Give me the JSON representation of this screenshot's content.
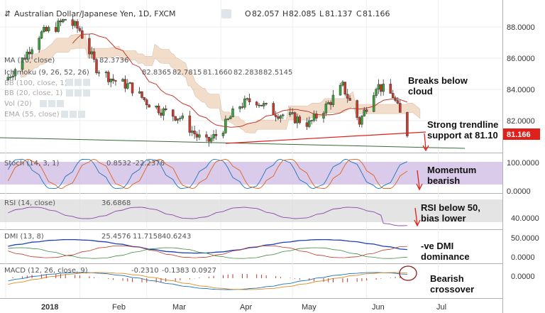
{
  "header": {
    "title": "Australian Dollar/Japanese Yen, 1D, FXCM",
    "open_label": "O",
    "open": "82.057",
    "high_label": "H",
    "high": "82.085",
    "low_label": "L",
    "low": "81.137",
    "close_label": "C",
    "close": "81.166"
  },
  "indicators": [
    {
      "name": "MA (20, close)",
      "values": [
        "82.3736"
      ],
      "colors": [
        "#a52a2a"
      ]
    },
    {
      "name": "Ichimoku (9, 26, 52, 26)",
      "values": [
        "82.8365",
        "82.7815",
        "81.1660",
        "82.2838",
        "82.5145"
      ],
      "colors": [
        "#1e73be",
        "#8b1a1a",
        "#3c8c3c",
        "#3c8c3c",
        "#c0392b"
      ]
    },
    {
      "name": "BB (100, close, 1)",
      "values": []
    },
    {
      "name": "BB (20, close, 1)",
      "values": []
    },
    {
      "name": "Vol (20)",
      "values": []
    },
    {
      "name": "EMA (55, close)",
      "values": []
    }
  ],
  "price_axis": {
    "ticks": [
      "88.0000",
      "86.0000",
      "84.0000",
      "82.0000"
    ],
    "current_price": "81.166",
    "current_color": "#e0201b"
  },
  "time_axis": {
    "labels": [
      "2018",
      "Feb",
      "Mar",
      "Apr",
      "May",
      "Jun",
      "Jul"
    ]
  },
  "annotations": {
    "cloud": "Breaks below\ncloud",
    "trendline": "Strong trendline\nsupport at 81.10",
    "momentum": "Momentum\nbearish",
    "rsi": "RSI below 50,\nbias lower",
    "dmi": "-ve DMI\ndominance",
    "macd": "Bearish\ncrossover"
  },
  "stoch": {
    "label": "Stoch (14, 3, 1)",
    "values": [
      "0.8532",
      "-22.2376"
    ],
    "colors": [
      "#1e73be",
      "#e0601b"
    ],
    "ticks": [
      "100.0000",
      "0.0000"
    ],
    "band_color": "#c9b5e0"
  },
  "rsi": {
    "label": "RSI (14, close)",
    "value": "36.6868",
    "color": "#8e44ad",
    "ticks": [
      "40.0000"
    ],
    "band_color": "#d8d8d8"
  },
  "dmi": {
    "label": "DMI (13, 8)",
    "values": [
      "25.4576",
      "11.7158",
      "40.6243"
    ],
    "colors": [
      "#1e3fbf",
      "#3c8c3c",
      "#c0392b"
    ],
    "ticks": [
      "50.0000",
      "0.0000"
    ]
  },
  "macd": {
    "label": "MACD (12, 26, close, 9)",
    "values": [
      "-0.2310",
      "-0.1383",
      "0.0927"
    ],
    "colors": [
      "#c0392b",
      "#1e73be",
      "#e08a1b"
    ],
    "ticks": [
      "0.0000"
    ]
  },
  "chart_data": {
    "type": "candlestick",
    "title": "Australian Dollar/Japanese Yen, 1D, FXCM",
    "x_range": [
      "2018-01-01",
      "2018-07-10"
    ],
    "y_range": [
      80.2,
      89.3
    ],
    "approx_close_path": [
      {
        "date": "2018-01-01",
        "close": 84.6
      },
      {
        "date": "2018-01-08",
        "close": 85.9
      },
      {
        "date": "2018-01-15",
        "close": 87.5
      },
      {
        "date": "2018-01-22",
        "close": 88.0
      },
      {
        "date": "2018-01-26",
        "close": 88.5
      },
      {
        "date": "2018-02-01",
        "close": 87.8
      },
      {
        "date": "2018-02-08",
        "close": 85.4
      },
      {
        "date": "2018-02-15",
        "close": 84.6
      },
      {
        "date": "2018-02-22",
        "close": 84.2
      },
      {
        "date": "2018-03-01",
        "close": 83.2
      },
      {
        "date": "2018-03-08",
        "close": 82.6
      },
      {
        "date": "2018-03-15",
        "close": 82.2
      },
      {
        "date": "2018-03-22",
        "close": 81.0
      },
      {
        "date": "2018-03-26",
        "close": 80.6
      },
      {
        "date": "2018-04-01",
        "close": 81.3
      },
      {
        "date": "2018-04-08",
        "close": 82.9
      },
      {
        "date": "2018-04-15",
        "close": 83.4
      },
      {
        "date": "2018-04-22",
        "close": 82.6
      },
      {
        "date": "2018-05-01",
        "close": 82.2
      },
      {
        "date": "2018-05-08",
        "close": 81.8
      },
      {
        "date": "2018-05-15",
        "close": 82.9
      },
      {
        "date": "2018-05-22",
        "close": 84.2
      },
      {
        "date": "2018-05-29",
        "close": 81.9
      },
      {
        "date": "2018-06-05",
        "close": 84.3
      },
      {
        "date": "2018-06-12",
        "close": 83.6
      },
      {
        "date": "2018-06-18",
        "close": 81.2
      }
    ],
    "trendline_support": 81.1,
    "ichimoku_cloud": true,
    "moving_average_color": "#c0392b"
  }
}
